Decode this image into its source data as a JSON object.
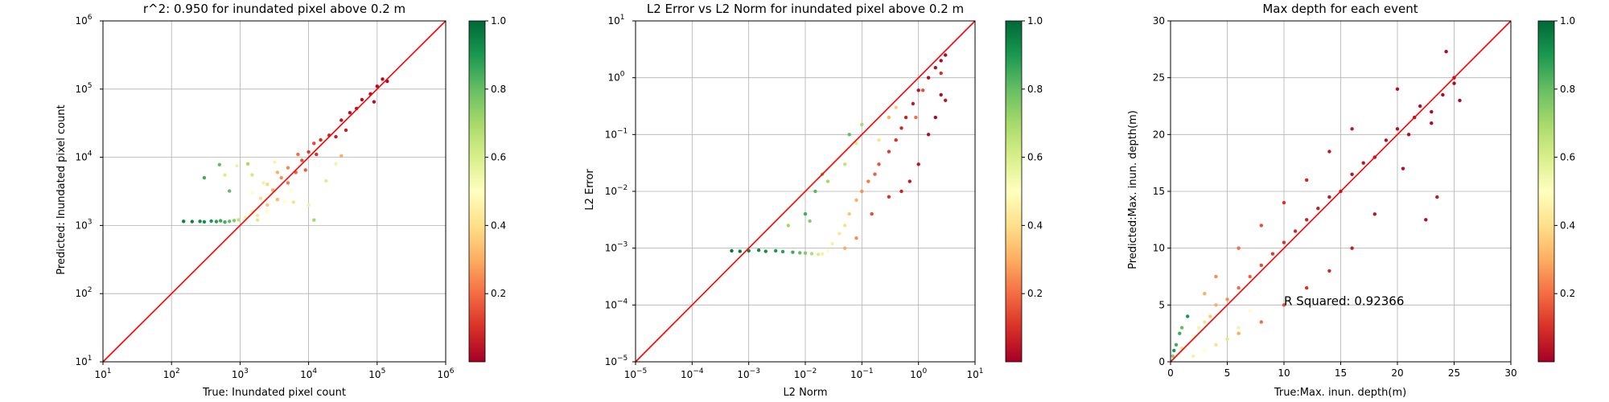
{
  "chart_data": [
    {
      "type": "scatter",
      "title": "r^2: 0.950 for inundated pixel above 0.2 m",
      "xlabel": "True: Inundated pixel count",
      "ylabel": "Predicted: Inundated pixel count",
      "xscale": "log",
      "yscale": "log",
      "xlim": [
        10,
        1000000
      ],
      "ylim": [
        10,
        1000000
      ],
      "xticks": [
        {
          "v": 10,
          "b": "10",
          "e": "1"
        },
        {
          "v": 100,
          "b": "10",
          "e": "2"
        },
        {
          "v": 1000,
          "b": "10",
          "e": "3"
        },
        {
          "v": 10000,
          "b": "10",
          "e": "4"
        },
        {
          "v": 100000,
          "b": "10",
          "e": "5"
        },
        {
          "v": 1000000,
          "b": "10",
          "e": "6"
        }
      ],
      "yticks": [
        {
          "v": 10,
          "b": "10",
          "e": "1"
        },
        {
          "v": 100,
          "b": "10",
          "e": "2"
        },
        {
          "v": 1000,
          "b": "10",
          "e": "3"
        },
        {
          "v": 10000,
          "b": "10",
          "e": "4"
        },
        {
          "v": 100000,
          "b": "10",
          "e": "5"
        },
        {
          "v": 1000000,
          "b": "10",
          "e": "6"
        }
      ],
      "grid": true,
      "reference_line": {
        "from": [
          10,
          10
        ],
        "to": [
          1000000,
          1000000
        ],
        "color": "#ff0000"
      },
      "colorbar": {
        "range": [
          0,
          1.0
        ],
        "ticks": [
          "0.2",
          "0.4",
          "0.6",
          "0.8",
          "1.0"
        ],
        "colormap": "RdYlGn"
      },
      "points": [
        [
          150,
          1150,
          0.95
        ],
        [
          200,
          1140,
          0.95
        ],
        [
          260,
          1150,
          0.93
        ],
        [
          300,
          1130,
          0.92
        ],
        [
          380,
          1160,
          0.9
        ],
        [
          450,
          1140,
          0.88
        ],
        [
          520,
          1170,
          0.86
        ],
        [
          600,
          1120,
          0.85
        ],
        [
          700,
          1150,
          0.8
        ],
        [
          820,
          1180,
          0.75
        ],
        [
          950,
          1210,
          0.65
        ],
        [
          1200,
          1300,
          0.55
        ],
        [
          1500,
          1600,
          0.45
        ],
        [
          1500,
          3000,
          0.5
        ],
        [
          1800,
          1400,
          0.42
        ],
        [
          2000,
          2500,
          0.4
        ],
        [
          2500,
          2000,
          0.35
        ],
        [
          2500,
          4000,
          0.38
        ],
        [
          3000,
          3300,
          0.3
        ],
        [
          3500,
          2400,
          0.32
        ],
        [
          4000,
          5000,
          0.25
        ],
        [
          5000,
          4200,
          0.22
        ],
        [
          5000,
          7000,
          0.24
        ],
        [
          6500,
          6000,
          0.18
        ],
        [
          8000,
          9000,
          0.15
        ],
        [
          9000,
          6500,
          0.17
        ],
        [
          10000,
          12000,
          0.12
        ],
        [
          13000,
          11000,
          0.1
        ],
        [
          15000,
          18000,
          0.09
        ],
        [
          20000,
          21000,
          0.07
        ],
        [
          25000,
          20000,
          0.06
        ],
        [
          30000,
          35000,
          0.05
        ],
        [
          40000,
          45000,
          0.04
        ],
        [
          50000,
          52000,
          0.04
        ],
        [
          60000,
          70000,
          0.03
        ],
        [
          80000,
          85000,
          0.03
        ],
        [
          100000,
          110000,
          0.02
        ],
        [
          120000,
          140000,
          0.02
        ],
        [
          140000,
          130000,
          0.02
        ],
        [
          90000,
          65000,
          0.03
        ],
        [
          35000,
          25000,
          0.06
        ],
        [
          7000,
          11000,
          0.2
        ],
        [
          12000,
          16000,
          0.14
        ],
        [
          3500,
          6000,
          0.3
        ],
        [
          600,
          5500,
          0.6
        ],
        [
          900,
          7500,
          0.55
        ],
        [
          1500,
          5500,
          0.62
        ],
        [
          1300,
          8000,
          0.7
        ],
        [
          2200,
          4200,
          0.55
        ],
        [
          3200,
          8500,
          0.45
        ],
        [
          4500,
          2200,
          0.5
        ],
        [
          6000,
          2200,
          0.4
        ],
        [
          10000,
          2000,
          0.55
        ],
        [
          12000,
          1200,
          0.7
        ],
        [
          18000,
          4500,
          0.6
        ],
        [
          25000,
          8000,
          0.55
        ],
        [
          30000,
          10500,
          0.3
        ],
        [
          5500,
          3200,
          0.5
        ],
        [
          2500,
          1600,
          0.5
        ],
        [
          1800,
          1200,
          0.6
        ],
        [
          700,
          3200,
          0.8
        ],
        [
          300,
          5000,
          0.85
        ],
        [
          500,
          7800,
          0.8
        ]
      ]
    },
    {
      "type": "scatter",
      "title": "L2 Error vs L2 Norm for inundated pixel above 0.2 m",
      "xlabel": "L2 Norm",
      "ylabel": "L2 Error",
      "xscale": "log",
      "yscale": "log",
      "xlim": [
        1e-05,
        10
      ],
      "ylim": [
        1e-05,
        10
      ],
      "xticks": [
        {
          "v": 1e-05,
          "b": "10",
          "e": "−5"
        },
        {
          "v": 0.0001,
          "b": "10",
          "e": "−4"
        },
        {
          "v": 0.001,
          "b": "10",
          "e": "−3"
        },
        {
          "v": 0.01,
          "b": "10",
          "e": "−2"
        },
        {
          "v": 0.1,
          "b": "10",
          "e": "−1"
        },
        {
          "v": 1,
          "b": "10",
          "e": "0"
        },
        {
          "v": 10,
          "b": "10",
          "e": "1"
        }
      ],
      "yticks": [
        {
          "v": 1e-05,
          "b": "10",
          "e": "−5"
        },
        {
          "v": 0.0001,
          "b": "10",
          "e": "−4"
        },
        {
          "v": 0.001,
          "b": "10",
          "e": "−3"
        },
        {
          "v": 0.01,
          "b": "10",
          "e": "−2"
        },
        {
          "v": 0.1,
          "b": "10",
          "e": "−1"
        },
        {
          "v": 1,
          "b": "10",
          "e": "0"
        },
        {
          "v": 10,
          "b": "10",
          "e": "1"
        }
      ],
      "grid": true,
      "reference_line": {
        "from": [
          1e-05,
          1e-05
        ],
        "to": [
          10,
          10
        ],
        "color": "#ff0000"
      },
      "colorbar": {
        "range": [
          0,
          1.0
        ],
        "ticks": [
          "0.2",
          "0.4",
          "0.6",
          "0.8",
          "1.0"
        ],
        "colormap": "RdYlGn"
      },
      "points": [
        [
          0.0005,
          0.0009,
          0.97
        ],
        [
          0.0007,
          0.00088,
          0.96
        ],
        [
          0.001,
          0.0009,
          0.95
        ],
        [
          0.0015,
          0.00092,
          0.93
        ],
        [
          0.002,
          0.00088,
          0.92
        ],
        [
          0.003,
          0.0009,
          0.9
        ],
        [
          0.004,
          0.00087,
          0.88
        ],
        [
          0.006,
          0.00085,
          0.85
        ],
        [
          0.008,
          0.00083,
          0.8
        ],
        [
          0.01,
          0.00082,
          0.75
        ],
        [
          0.013,
          0.0008,
          0.68
        ],
        [
          0.017,
          0.00078,
          0.6
        ],
        [
          0.02,
          0.00079,
          0.55
        ],
        [
          0.025,
          0.0009,
          0.5
        ],
        [
          0.03,
          0.0012,
          0.45
        ],
        [
          0.04,
          0.0018,
          0.42
        ],
        [
          0.05,
          0.0025,
          0.4
        ],
        [
          0.06,
          0.004,
          0.35
        ],
        [
          0.08,
          0.007,
          0.3
        ],
        [
          0.1,
          0.01,
          0.25
        ],
        [
          0.13,
          0.015,
          0.22
        ],
        [
          0.17,
          0.02,
          0.18
        ],
        [
          0.2,
          0.03,
          0.16
        ],
        [
          0.3,
          0.05,
          0.12
        ],
        [
          0.4,
          0.08,
          0.1
        ],
        [
          0.5,
          0.13,
          0.08
        ],
        [
          0.6,
          0.2,
          0.07
        ],
        [
          0.8,
          0.35,
          0.05
        ],
        [
          1.0,
          0.6,
          0.04
        ],
        [
          1.5,
          1.0,
          0.03
        ],
        [
          2.0,
          1.5,
          0.03
        ],
        [
          2.5,
          2.0,
          0.02
        ],
        [
          3.0,
          2.5,
          0.02
        ],
        [
          1.5,
          0.1,
          0.03
        ],
        [
          2.0,
          0.2,
          0.02
        ],
        [
          2.5,
          0.5,
          0.02
        ],
        [
          1.0,
          0.03,
          0.04
        ],
        [
          0.7,
          0.015,
          0.05
        ],
        [
          0.5,
          0.01,
          0.07
        ],
        [
          0.3,
          0.008,
          0.1
        ],
        [
          0.15,
          0.004,
          0.15
        ],
        [
          0.08,
          0.0015,
          0.25
        ],
        [
          0.05,
          0.001,
          0.3
        ],
        [
          0.01,
          0.004,
          0.85
        ],
        [
          0.015,
          0.01,
          0.82
        ],
        [
          0.02,
          0.02,
          0.78
        ],
        [
          0.012,
          0.003,
          0.75
        ],
        [
          0.025,
          0.015,
          0.7
        ],
        [
          0.05,
          0.03,
          0.65
        ],
        [
          0.08,
          0.07,
          0.6
        ],
        [
          0.06,
          0.1,
          0.8
        ],
        [
          0.1,
          0.15,
          0.7
        ],
        [
          0.005,
          0.0025,
          0.7
        ],
        [
          0.2,
          0.08,
          0.4
        ],
        [
          0.3,
          0.2,
          0.3
        ],
        [
          0.4,
          0.3,
          0.35
        ],
        [
          1.2,
          0.6,
          0.15
        ],
        [
          0.9,
          0.2,
          0.2
        ],
        [
          2.5,
          1.2,
          0.1
        ],
        [
          3.0,
          0.4,
          0.05
        ]
      ]
    },
    {
      "type": "scatter",
      "title": "Max depth for each event",
      "xlabel": "True:Max. inun. depth(m)",
      "ylabel": "Predicted:Max. inun. depth(m)",
      "xscale": "linear",
      "yscale": "linear",
      "xlim": [
        0,
        30
      ],
      "ylim": [
        0,
        30
      ],
      "xticks": [
        {
          "v": 0,
          "t": "0"
        },
        {
          "v": 5,
          "t": "5"
        },
        {
          "v": 10,
          "t": "10"
        },
        {
          "v": 15,
          "t": "15"
        },
        {
          "v": 20,
          "t": "20"
        },
        {
          "v": 25,
          "t": "25"
        },
        {
          "v": 30,
          "t": "30"
        }
      ],
      "yticks": [
        {
          "v": 0,
          "t": "0"
        },
        {
          "v": 5,
          "t": "5"
        },
        {
          "v": 10,
          "t": "10"
        },
        {
          "v": 15,
          "t": "15"
        },
        {
          "v": 20,
          "t": "20"
        },
        {
          "v": 25,
          "t": "25"
        },
        {
          "v": 30,
          "t": "30"
        }
      ],
      "grid": true,
      "annotation": {
        "text": "R Squared: 0.92366",
        "x": 10,
        "y": 5
      },
      "reference_line": {
        "from": [
          0,
          0
        ],
        "to": [
          30,
          30
        ],
        "color": "#ff0000"
      },
      "colorbar": {
        "range": [
          0,
          1.0
        ],
        "ticks": [
          "0.2",
          "0.4",
          "0.6",
          "0.8",
          "1.0"
        ],
        "colormap": "RdYlGn"
      },
      "points": [
        [
          0.3,
          1.0,
          0.9
        ],
        [
          0.5,
          1.5,
          0.85
        ],
        [
          0.8,
          2.5,
          0.85
        ],
        [
          1.0,
          3.0,
          0.8
        ],
        [
          1.5,
          4.0,
          0.9
        ],
        [
          0.2,
          0.5,
          0.75
        ],
        [
          1,
          1.2,
          0.6
        ],
        [
          2,
          2.3,
          0.5
        ],
        [
          2.5,
          3.0,
          0.45
        ],
        [
          3,
          3.5,
          0.4
        ],
        [
          3.5,
          4.0,
          0.35
        ],
        [
          4,
          5.0,
          0.3
        ],
        [
          5,
          5.5,
          0.25
        ],
        [
          6,
          6.5,
          0.2
        ],
        [
          7,
          7.5,
          0.18
        ],
        [
          8,
          8.5,
          0.15
        ],
        [
          9,
          9.5,
          0.12
        ],
        [
          10,
          10.5,
          0.1
        ],
        [
          11,
          11.5,
          0.08
        ],
        [
          12,
          12.5,
          0.07
        ],
        [
          13,
          13.5,
          0.06
        ],
        [
          14,
          14.5,
          0.05
        ],
        [
          15,
          15.0,
          0.05
        ],
        [
          16,
          16.5,
          0.04
        ],
        [
          17,
          17.5,
          0.04
        ],
        [
          18,
          18.0,
          0.03
        ],
        [
          19,
          19.5,
          0.03
        ],
        [
          20,
          20.5,
          0.03
        ],
        [
          21,
          20.0,
          0.03
        ],
        [
          22,
          22.5,
          0.02
        ],
        [
          23,
          22.0,
          0.02
        ],
        [
          24,
          23.5,
          0.02
        ],
        [
          25,
          25.0,
          0.02
        ],
        [
          24.3,
          27.3,
          0.02
        ],
        [
          25.5,
          23.0,
          0.02
        ],
        [
          22.5,
          12.5,
          0.03
        ],
        [
          20.5,
          17.0,
          0.03
        ],
        [
          18,
          13.0,
          0.04
        ],
        [
          16,
          10.0,
          0.06
        ],
        [
          14,
          8.0,
          0.08
        ],
        [
          12,
          6.5,
          0.1
        ],
        [
          10,
          5.0,
          0.15
        ],
        [
          8,
          3.5,
          0.2
        ],
        [
          6,
          2.5,
          0.3
        ],
        [
          4,
          1.5,
          0.4
        ],
        [
          3,
          1.0,
          0.5
        ],
        [
          2,
          0.5,
          0.55
        ],
        [
          5,
          2.0,
          0.6
        ],
        [
          6,
          3.0,
          0.55
        ],
        [
          7,
          4.5,
          0.5
        ],
        [
          3,
          6.0,
          0.3
        ],
        [
          4,
          7.5,
          0.25
        ],
        [
          6,
          10.0,
          0.2
        ],
        [
          8,
          12.0,
          0.15
        ],
        [
          10,
          14.0,
          0.1
        ],
        [
          12,
          16.0,
          0.08
        ],
        [
          14,
          18.5,
          0.05
        ],
        [
          16,
          20.5,
          0.05
        ],
        [
          20,
          24.0,
          0.03
        ],
        [
          23,
          21.0,
          0.02
        ],
        [
          25,
          24.5,
          0.02
        ],
        [
          23.5,
          14.5,
          0.05
        ],
        [
          21.5,
          21.5,
          0.03
        ]
      ]
    }
  ]
}
